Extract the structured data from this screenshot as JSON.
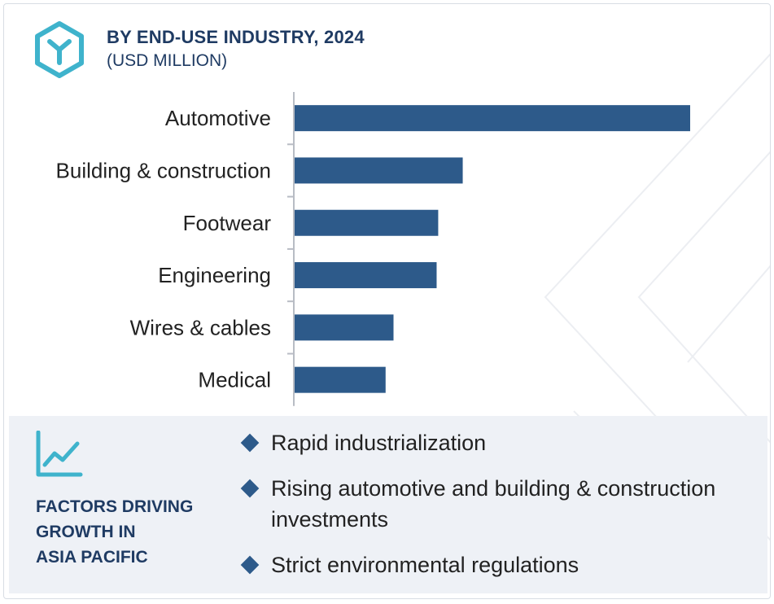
{
  "header": {
    "title": "BY END-USE INDUSTRY, 2024",
    "subtitle": "(USD MILLION)",
    "logo_icon": "hexagon-y-icon",
    "accent_color": "#3fb3cc"
  },
  "chart_data": {
    "type": "bar",
    "orientation": "horizontal",
    "title": "BY END-USE INDUSTRY, 2024",
    "subtitle": "(USD MILLION)",
    "categories": [
      "Automotive",
      "Building & construction",
      "Footwear",
      "Engineering",
      "Wires & cables",
      "Medical"
    ],
    "values": [
      100,
      42.5,
      36.3,
      35.9,
      25.0,
      23.0
    ],
    "xlim": [
      0,
      100
    ],
    "grid": false,
    "legend": "none",
    "bar_color": "#2d5a8a"
  },
  "factors": {
    "icon": "line-chart-icon",
    "title_lines": [
      "FACTORS DRIVING",
      "GROWTH IN",
      "ASIA PACIFIC"
    ],
    "items": [
      "Rapid industrialization",
      "Rising automotive and building & construction investments",
      "Strict environmental regulations"
    ],
    "bullet_color": "#2d5a8a"
  }
}
